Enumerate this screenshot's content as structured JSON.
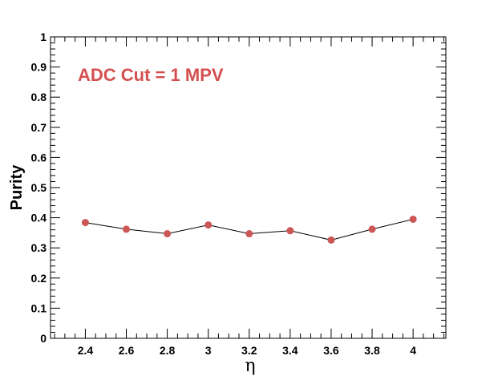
{
  "chart_data": {
    "type": "line",
    "title": "",
    "annotation": "ADC Cut = 1 MPV",
    "xlabel": "η",
    "ylabel": "Purity",
    "xlim": [
      2.23,
      4.16
    ],
    "ylim": [
      0,
      1
    ],
    "x_ticks": [
      "2.4",
      "2.6",
      "2.8",
      "3",
      "3.2",
      "3.4",
      "3.6",
      "3.8",
      "4"
    ],
    "y_ticks": [
      "0",
      "0.1",
      "0.2",
      "0.3",
      "0.4",
      "0.5",
      "0.6",
      "0.7",
      "0.8",
      "0.9",
      "1"
    ],
    "grid": false,
    "legend": "none",
    "series": [
      {
        "x": [
          2.4,
          2.6,
          2.8,
          3.0,
          3.2,
          3.4,
          3.6,
          3.8,
          4.0
        ],
        "y": [
          0.384,
          0.362,
          0.347,
          0.376,
          0.347,
          0.357,
          0.326,
          0.362,
          0.395
        ],
        "marker_color": "#cc5555",
        "line_color": "#000000"
      }
    ],
    "annotation_color": "#d45050"
  }
}
